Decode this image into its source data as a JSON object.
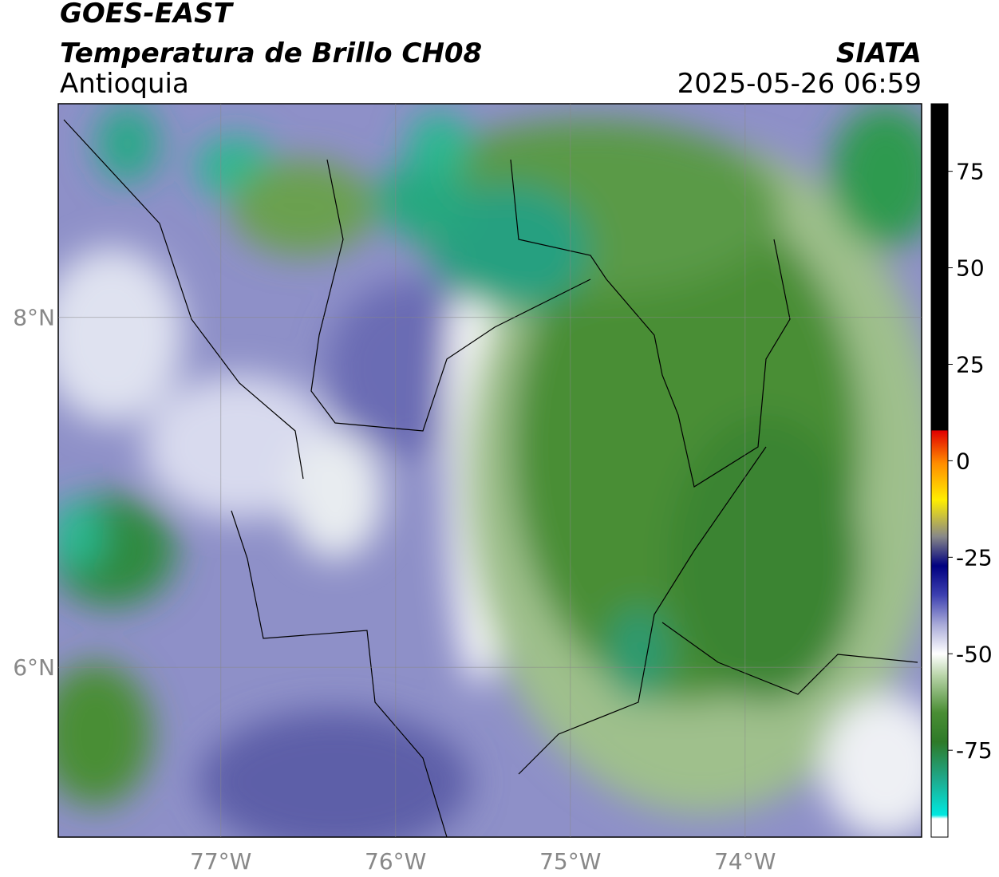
{
  "header": {
    "title": "GOES-EAST",
    "subtitle": "Temperatura de Brillo CH08",
    "region": "Antioquia",
    "source": "SIATA",
    "datetime": "2025-05-26 06:59"
  },
  "map": {
    "xlim": [
      -77.93,
      -72.99
    ],
    "ylim": [
      5.03,
      9.22
    ],
    "xticks": [
      {
        "value": -77,
        "label": "77°W"
      },
      {
        "value": -76,
        "label": "76°W"
      },
      {
        "value": -75,
        "label": "75°W"
      },
      {
        "value": -74,
        "label": "74°W"
      }
    ],
    "yticks": [
      {
        "value": 8,
        "label": "8°N"
      },
      {
        "value": 6,
        "label": "6°N"
      }
    ],
    "grid": true
  },
  "colorbar": {
    "lim": [
      -97.5,
      92.5
    ],
    "ticks": [
      75,
      50,
      25,
      0,
      -25,
      -50,
      -75
    ]
  }
}
